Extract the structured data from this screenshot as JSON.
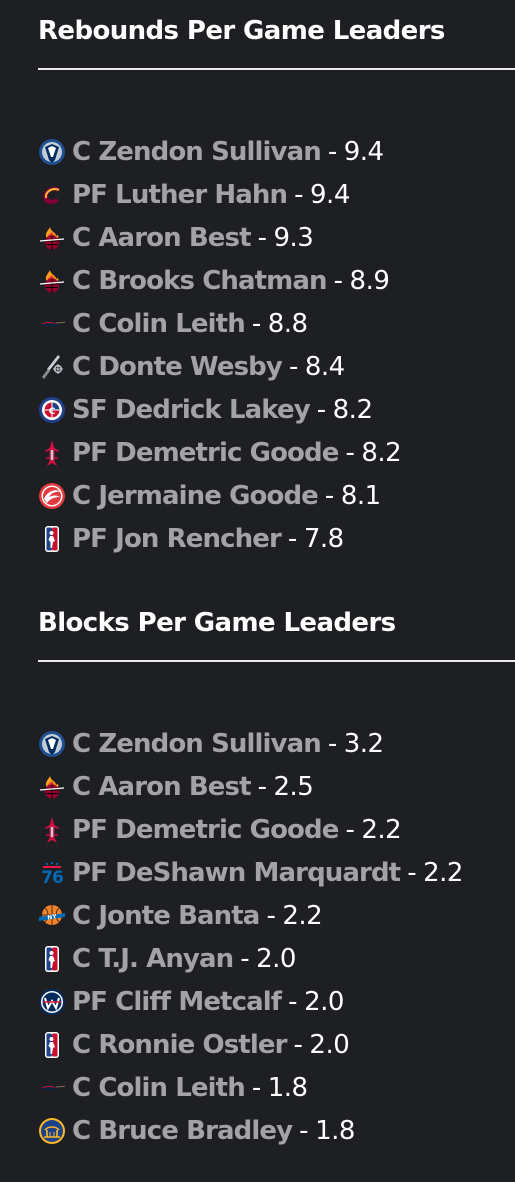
{
  "rebounds": {
    "title": "Rebounds Per Game Leaders",
    "rows": [
      {
        "logo": "mavericks-logo-icon",
        "player": "C Zendon Sullivan",
        "value": "9.4"
      },
      {
        "logo": "cavaliers-logo-icon",
        "player": "PF Luther Hahn",
        "value": "9.4"
      },
      {
        "logo": "heat-logo-icon",
        "player": "C Aaron Best",
        "value": "9.3"
      },
      {
        "logo": "heat-logo-icon",
        "player": "C Brooks Chatman",
        "value": "8.9"
      },
      {
        "logo": "pelicans-logo-icon",
        "player": "C Colin Leith",
        "value": "8.8"
      },
      {
        "logo": "spurs-logo-icon",
        "player": "C Donte Wesby",
        "value": "8.4"
      },
      {
        "logo": "clippers-logo-icon",
        "player": "SF Dedrick Lakey",
        "value": "8.2"
      },
      {
        "logo": "rockets-logo-icon",
        "player": "PF Demetric Goode",
        "value": "8.2"
      },
      {
        "logo": "hawks-logo-icon",
        "player": "C Jermaine Goode",
        "value": "8.1"
      },
      {
        "logo": "nba-logo-icon",
        "player": "PF Jon Rencher",
        "value": "7.8"
      }
    ]
  },
  "blocks": {
    "title": "Blocks Per Game Leaders",
    "rows": [
      {
        "logo": "mavericks-logo-icon",
        "player": "C Zendon Sullivan",
        "value": "3.2"
      },
      {
        "logo": "heat-logo-icon",
        "player": "C Aaron Best",
        "value": "2.5"
      },
      {
        "logo": "rockets-logo-icon",
        "player": "PF Demetric Goode",
        "value": "2.2"
      },
      {
        "logo": "76ers-logo-icon",
        "player": "PF DeShawn Marquardt",
        "value": "2.2"
      },
      {
        "logo": "knicks-logo-icon",
        "player": "C Jonte Banta",
        "value": "2.2"
      },
      {
        "logo": "nba-logo-icon",
        "player": "C T.J. Anyan",
        "value": "2.0"
      },
      {
        "logo": "wizards-logo-icon",
        "player": "PF Cliff Metcalf",
        "value": "2.0"
      },
      {
        "logo": "nba-logo-icon",
        "player": "C Ronnie Ostler",
        "value": "2.0"
      },
      {
        "logo": "pelicans-logo-icon",
        "player": "C Colin Leith",
        "value": "1.8"
      },
      {
        "logo": "warriors-logo-icon",
        "player": "C Bruce Bradley",
        "value": "1.8"
      }
    ]
  },
  "separator": "-",
  "colors": {
    "background": "#1e1f23",
    "player_link": "#a3a3a6",
    "text": "#ffffff",
    "rule": "#e8e8e8"
  }
}
